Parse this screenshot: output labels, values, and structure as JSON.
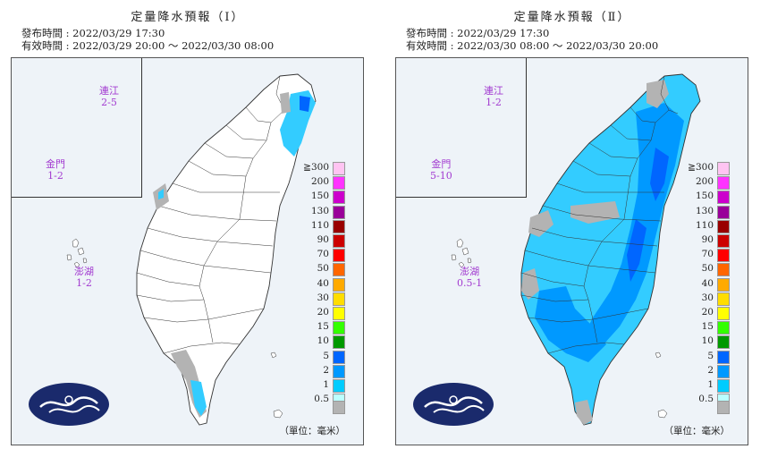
{
  "panels": [
    {
      "title": "定量降水預報（Ⅰ）",
      "issued": "發布時間 : 2022/03/29 17:30",
      "valid": "有效時間 : 2022/03/29 20:00 ～ 2022/03/30 08:00",
      "islands": [
        {
          "name": "連江",
          "value": "2-5"
        },
        {
          "name": "金門",
          "value": "1-2"
        },
        {
          "name": "澎湖",
          "value": "1-2"
        }
      ],
      "unit": "（單位：毫米）"
    },
    {
      "title": "定量降水預報（Ⅱ）",
      "issued": "發布時間 : 2022/03/29 17:30",
      "valid": "有效時間 : 2022/03/30 08:00 ～ 2022/03/30 20:00",
      "islands": [
        {
          "name": "連江",
          "value": "1-2"
        },
        {
          "name": "金門",
          "value": "5-10"
        },
        {
          "name": "澎湖",
          "value": "0.5-1"
        }
      ],
      "unit": "（單位：毫米）"
    }
  ],
  "legend": [
    {
      "label": "≧300",
      "color": "#ffc4f2"
    },
    {
      "label": "200",
      "color": "#ff33ff"
    },
    {
      "label": "150",
      "color": "#cc00cc"
    },
    {
      "label": "130",
      "color": "#990099"
    },
    {
      "label": "110",
      "color": "#990000"
    },
    {
      "label": "90",
      "color": "#cc0000"
    },
    {
      "label": "70",
      "color": "#ff0000"
    },
    {
      "label": "50",
      "color": "#ff6600"
    },
    {
      "label": "40",
      "color": "#ffaa00"
    },
    {
      "label": "30",
      "color": "#ffdd00"
    },
    {
      "label": "20",
      "color": "#ffff00"
    },
    {
      "label": "15",
      "color": "#33ff00"
    },
    {
      "label": "10",
      "color": "#009900"
    },
    {
      "label": "5",
      "color": "#0066ff"
    },
    {
      "label": "2",
      "color": "#0099ff"
    },
    {
      "label": "1",
      "color": "#00ccff"
    },
    {
      "label": "0.5",
      "color": "#bbffff"
    }
  ],
  "no_rain_color": "#b3b3b3",
  "sea_color": "#eef3f8",
  "logo_color": "#1a2a6c"
}
